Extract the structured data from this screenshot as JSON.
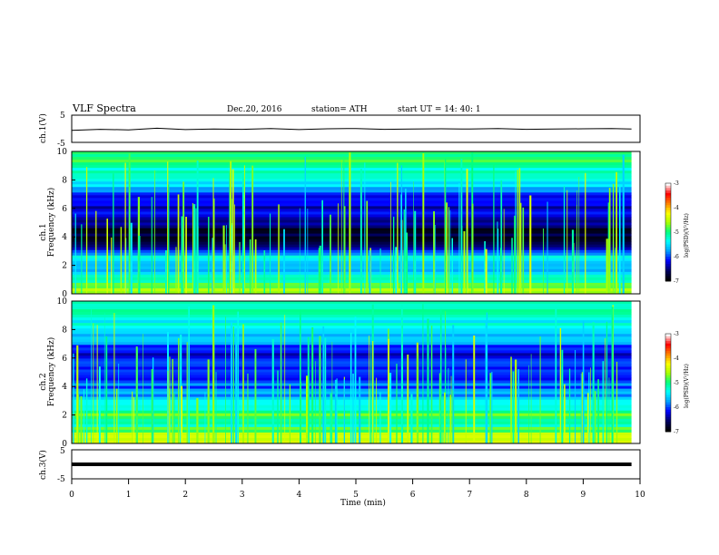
{
  "header": {
    "title": "VLF  Spectra",
    "date": "Dec.20, 2016",
    "station": "station= ATH",
    "start": "start  UT  =    14: 40: 1"
  },
  "chart_data": [
    {
      "type": "line",
      "ylabel": "ch.1(V)",
      "ylim": [
        -5,
        5
      ],
      "yticks": [
        "5",
        "-5"
      ],
      "xlim": [
        0,
        10
      ],
      "x": [
        0,
        0.5,
        1,
        1.5,
        2,
        2.5,
        3,
        3.5,
        4,
        4.5,
        5,
        5.5,
        6,
        6.5,
        7,
        7.5,
        8,
        8.5,
        9,
        9.5,
        9.85
      ],
      "values": [
        -0.6,
        -0.2,
        -0.4,
        0.2,
        -0.3,
        -0.1,
        -0.2,
        0.1,
        -0.3,
        0.0,
        0.1,
        -0.2,
        -0.1,
        0.0,
        -0.1,
        0.1,
        -0.2,
        -0.1,
        0.0,
        0.1,
        -0.1
      ]
    },
    {
      "type": "heatmap",
      "ylabel": "ch.1\nFrequency  (kHz)",
      "ylim": [
        0,
        10
      ],
      "yticks": [
        "0",
        "2",
        "4",
        "6",
        "8",
        "10"
      ],
      "xlim": [
        0,
        10
      ],
      "colorbar": {
        "label": "log(PSD)(V²/Hz)",
        "range": [
          -7,
          -3
        ],
        "ticks": [
          "-3",
          "-4",
          "-5",
          "-6",
          "-7"
        ]
      },
      "profile_freq_khz": [
        0.5,
        1.0,
        1.5,
        2.0,
        2.5,
        3.0,
        3.5,
        4.5,
        5.5,
        6.5,
        7.5,
        8.5,
        9.5
      ],
      "profile_log_psd": [
        -4.6,
        -5.2,
        -5.6,
        -5.9,
        -5.2,
        -6.3,
        -6.6,
        -6.9,
        -6.2,
        -6.4,
        -5.6,
        -5.3,
        -5.0
      ]
    },
    {
      "type": "heatmap",
      "ylabel": "ch.2\nFrequency  (kHz)",
      "ylim": [
        0,
        10
      ],
      "yticks": [
        "0",
        "2",
        "4",
        "6",
        "8",
        "10"
      ],
      "xlim": [
        0,
        10
      ],
      "colorbar": {
        "label": "log(PSD)(V²/Hz)",
        "range": [
          -7,
          -3
        ],
        "ticks": [
          "-3",
          "-4",
          "-5",
          "-6",
          "-7"
        ]
      },
      "profile_freq_khz": [
        0.5,
        1.0,
        1.5,
        2.0,
        2.5,
        3.0,
        3.5,
        4.5,
        5.5,
        6.5,
        7.5,
        8.5,
        9.5
      ],
      "profile_log_psd": [
        -4.5,
        -4.9,
        -5.3,
        -4.6,
        -5.4,
        -5.6,
        -5.8,
        -6.1,
        -6.0,
        -6.3,
        -5.6,
        -5.4,
        -5.2
      ]
    },
    {
      "type": "line",
      "ylabel": "ch.3(V)",
      "ylim": [
        -5,
        5
      ],
      "yticks": [
        "5",
        "-5"
      ],
      "xlim": [
        0,
        10
      ],
      "xlabel": "Time  (min)",
      "xticks": [
        "0",
        "1",
        "2",
        "3",
        "4",
        "5",
        "6",
        "7",
        "8",
        "9",
        "10"
      ],
      "x": [
        0,
        9.85
      ],
      "values": [
        0.0,
        0.0
      ]
    }
  ],
  "colors": {
    "axis": "#000000",
    "colormap": [
      "#000000",
      "#000066",
      "#0000ff",
      "#00a0ff",
      "#00ffff",
      "#00ff80",
      "#aaff00",
      "#ffff00",
      "#ff8000",
      "#ff0000",
      "#ffffff"
    ]
  }
}
